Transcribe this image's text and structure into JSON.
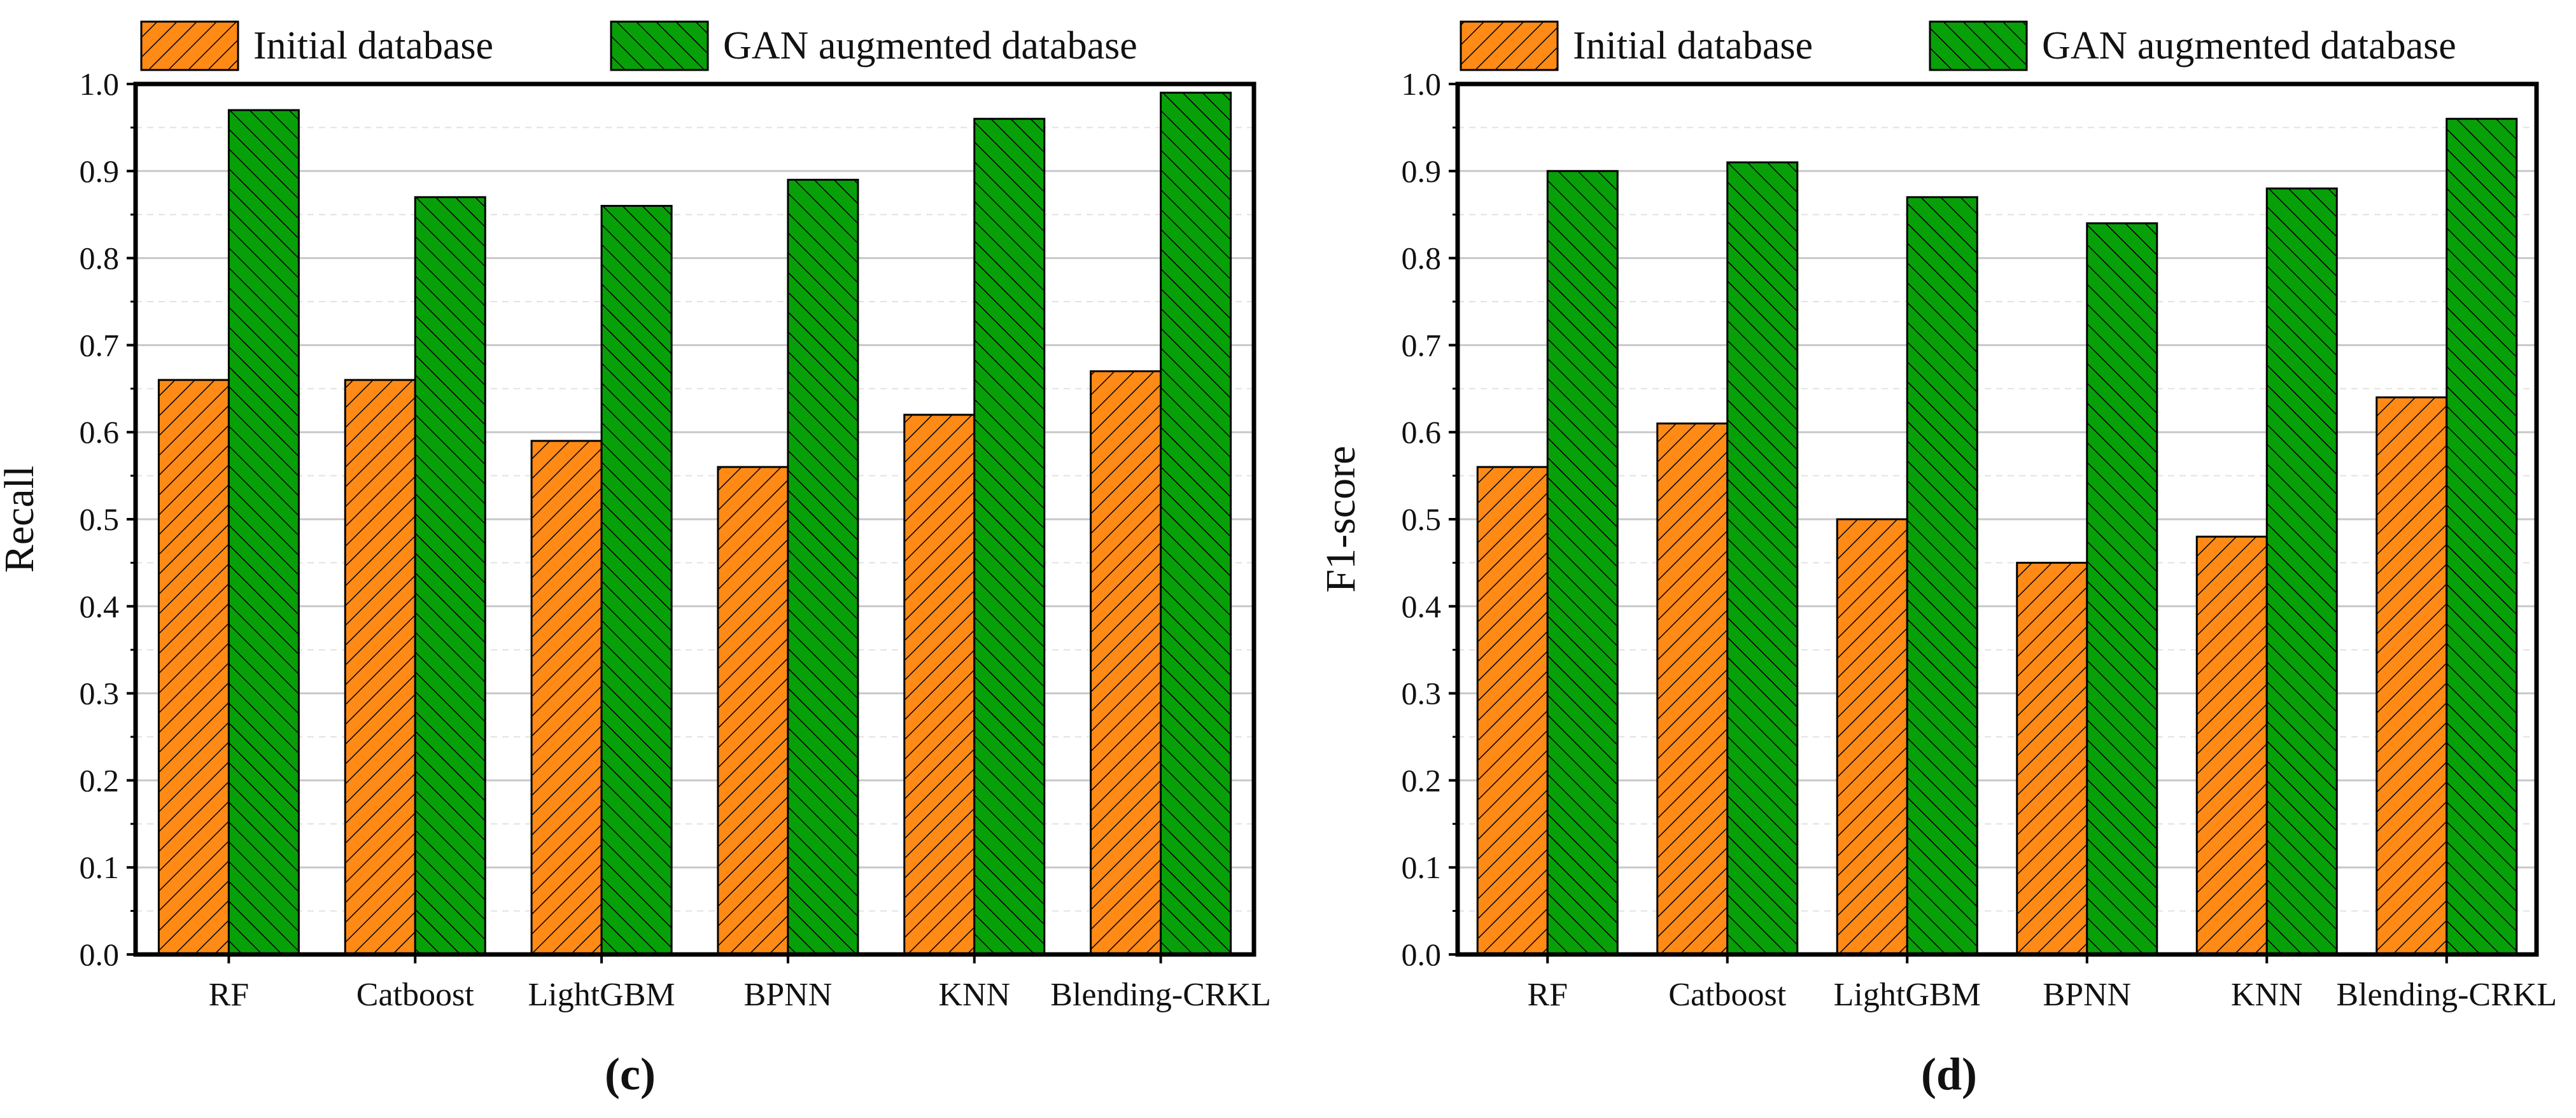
{
  "colors": {
    "initial": "#FF8A16",
    "gan": "#08A008",
    "hatch": "#000000",
    "axis": "#000000",
    "grid_major": "#c8c8c8",
    "grid_minor": "#e2e2e2"
  },
  "legend": {
    "initial_label": "Initial database",
    "gan_label": "GAN augmented database"
  },
  "chart_data": [
    {
      "type": "bar",
      "panel_label": "(c)",
      "title": "",
      "xlabel": "",
      "ylabel": "Recall",
      "ylim": [
        0.0,
        1.0
      ],
      "yticks": [
        "0.0",
        "0.1",
        "0.2",
        "0.3",
        "0.4",
        "0.5",
        "0.6",
        "0.7",
        "0.8",
        "0.9",
        "1.0"
      ],
      "grid": true,
      "legend_position": "top",
      "categories": [
        "RF",
        "Catboost",
        "LightGBM",
        "BPNN",
        "KNN",
        "Blending-CRKL"
      ],
      "series": [
        {
          "name": "Initial database",
          "values": [
            0.66,
            0.66,
            0.59,
            0.56,
            0.62,
            0.67
          ]
        },
        {
          "name": "GAN augmented database",
          "values": [
            0.97,
            0.87,
            0.86,
            0.89,
            0.96,
            0.99
          ]
        }
      ]
    },
    {
      "type": "bar",
      "panel_label": "(d)",
      "title": "",
      "xlabel": "",
      "ylabel": "F1-score",
      "ylim": [
        0.0,
        1.0
      ],
      "yticks": [
        "0.0",
        "0.1",
        "0.2",
        "0.3",
        "0.4",
        "0.5",
        "0.6",
        "0.7",
        "0.8",
        "0.9",
        "1.0"
      ],
      "grid": true,
      "legend_position": "top",
      "categories": [
        "RF",
        "Catboost",
        "LightGBM",
        "BPNN",
        "KNN",
        "Blending-CRKL"
      ],
      "series": [
        {
          "name": "Initial database",
          "values": [
            0.56,
            0.61,
            0.5,
            0.45,
            0.48,
            0.64
          ]
        },
        {
          "name": "GAN augmented database",
          "values": [
            0.9,
            0.91,
            0.87,
            0.84,
            0.88,
            0.96
          ]
        }
      ]
    }
  ]
}
